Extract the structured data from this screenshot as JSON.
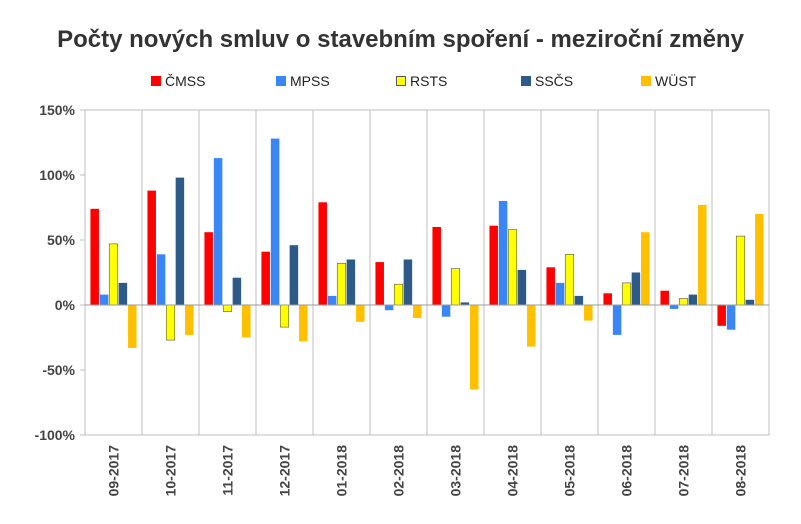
{
  "chart_data": {
    "type": "bar",
    "title": "Počty nových smluv o stavebním spoření - meziroční změny",
    "xlabel": "",
    "ylabel": "",
    "ylim": [
      -100,
      150
    ],
    "yticks": [
      150,
      100,
      50,
      0,
      -50,
      -100
    ],
    "ytick_labels": [
      "150%",
      "100%",
      "50%",
      "0%",
      "-50%",
      "-100%"
    ],
    "grid": "vertical",
    "legend_position": "top",
    "categories": [
      "09-2017",
      "10-2017",
      "11-2017",
      "12-2017",
      "01-2018",
      "02-2018",
      "03-2018",
      "04-2018",
      "05-2018",
      "06-2018",
      "07-2018",
      "08-2018"
    ],
    "series": [
      {
        "name": "ČMSS",
        "color": "#ff0000",
        "values": [
          74,
          88,
          56,
          41,
          79,
          33,
          60,
          61,
          29,
          9,
          11,
          -16
        ]
      },
      {
        "name": "MPSS",
        "color": "#3a86f7",
        "values": [
          8,
          39,
          113,
          128,
          7,
          -4,
          -9,
          80,
          17,
          -23,
          -3,
          -19
        ]
      },
      {
        "name": "RSTS",
        "color": "#ffff00",
        "values": [
          47,
          -27,
          -5,
          -17,
          32,
          16,
          28,
          58,
          39,
          17,
          5,
          53
        ]
      },
      {
        "name": "SSČS",
        "color": "#2e5a87",
        "values": [
          17,
          98,
          21,
          46,
          35,
          35,
          2,
          27,
          7,
          25,
          8,
          4
        ]
      },
      {
        "name": "WÜST",
        "color": "#ffc000",
        "values": [
          -33,
          -23,
          -25,
          -28,
          -13,
          -10,
          -65,
          -32,
          -12,
          56,
          77,
          70
        ]
      }
    ]
  }
}
